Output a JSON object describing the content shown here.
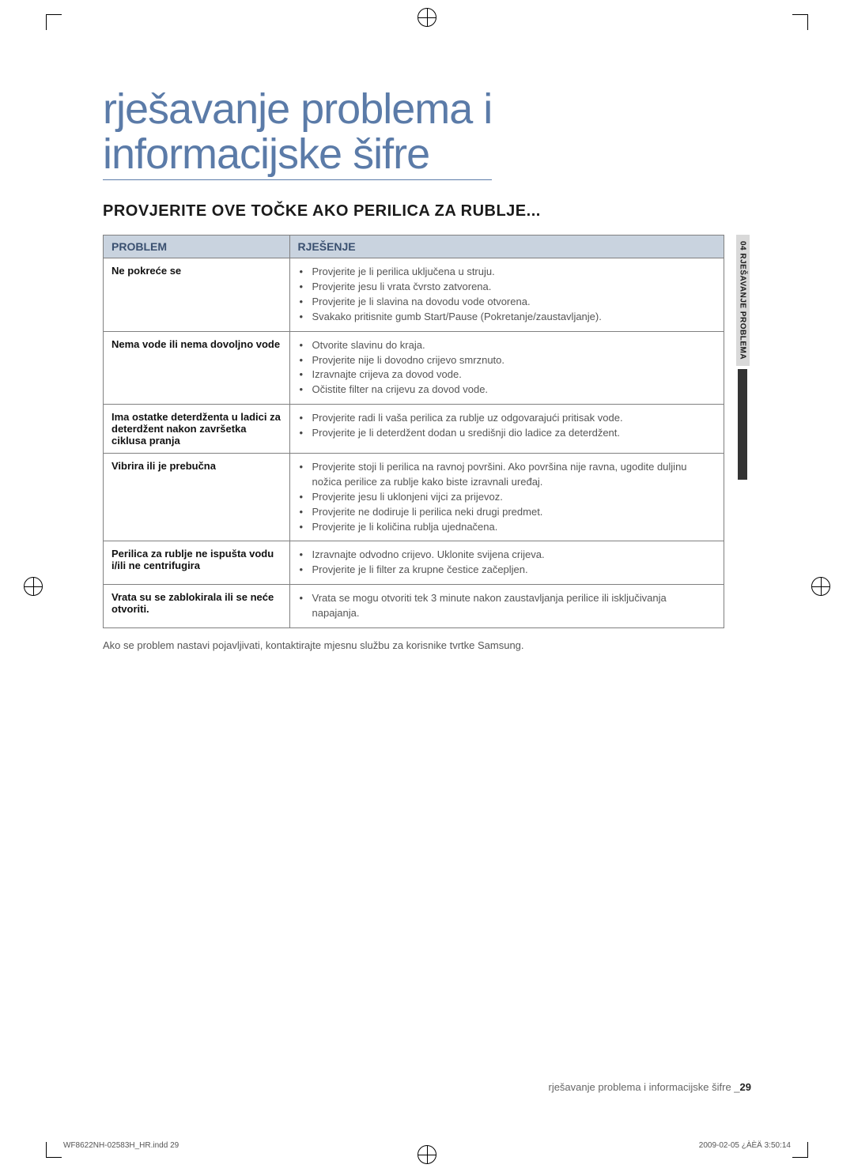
{
  "title_line1": "rješavanje problema i",
  "title_line2": "informacijske šifre",
  "section_heading": "PROVJERITE OVE TOČKE AKO PERILICA ZA RUBLJE...",
  "sidebar_label": "04 RJEŠAVANJE PROBLEMA",
  "table": {
    "header_problem": "PROBLEM",
    "header_solution": "RJEŠENJE",
    "rows": [
      {
        "problem": "Ne pokreće se",
        "solutions": [
          "Provjerite je li perilica uključena u struju.",
          "Provjerite jesu li vrata čvrsto zatvorena.",
          "Provjerite je li slavina na dovodu vode otvorena.",
          "Svakako pritisnite gumb Start/Pause (Pokretanje/zaustavljanje)."
        ]
      },
      {
        "problem": "Nema vode ili nema dovoljno vode",
        "solutions": [
          "Otvorite slavinu do kraja.",
          "Provjerite nije li dovodno crijevo smrznuto.",
          "Izravnajte crijeva za dovod vode.",
          "Očistite filter na crijevu za dovod vode."
        ]
      },
      {
        "problem": "Ima ostatke deterdženta u ladici za deterdžent nakon završetka ciklusa pranja",
        "solutions": [
          "Provjerite radi li vaša perilica za rublje uz odgovarajući pritisak vode.",
          "Provjerite je li deterdžent dodan u središnji dio ladice za deterdžent."
        ]
      },
      {
        "problem": "Vibrira ili je prebučna",
        "solutions": [
          "Provjerite stoji li perilica na ravnoj površini. Ako površina nije ravna, ugodite duljinu nožica perilice za rublje kako biste izravnali uređaj.",
          "Provjerite jesu li uklonjeni vijci za prijevoz.",
          "Provjerite ne dodiruje li perilica neki drugi predmet.",
          "Provjerite je li količina rublja ujednačena."
        ]
      },
      {
        "problem": "Perilica za rublje ne ispušta vodu i/ili ne centrifugira",
        "solutions": [
          "Izravnajte odvodno crijevo. Uklonite svijena crijeva.",
          "Provjerite je li filter za krupne čestice začepljen."
        ]
      },
      {
        "problem": "Vrata su se zablokirala ili se neće otvoriti.",
        "solutions": [
          "Vrata se mogu otvoriti tek 3 minute nakon zaustavljanja perilice ili isključivanja napajanja."
        ]
      }
    ]
  },
  "after_table_note": "Ako se problem nastavi pojavljivati, kontaktirajte mjesnu službu za korisnike tvrtke Samsung.",
  "footer_text": "rješavanje problema i informacijske šifre _",
  "footer_page": "29",
  "print_left": "WF8622NH-02583H_HR.indd   29",
  "print_right": "2009-02-05   ¿ÀÈÄ 3:50:14"
}
